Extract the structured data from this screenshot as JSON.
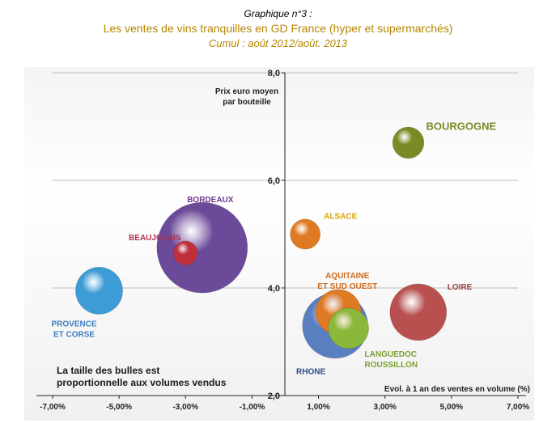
{
  "header": {
    "number": "Graphique n°3 :",
    "title": "Les ventes de vins tranquilles en GD France (hyper et supermarchés)",
    "subtitle": "Cumul : août 2012/août. 2013"
  },
  "chart_data": {
    "type": "scatter",
    "variant": "bubble",
    "ylabel": "Prix euro moyen\npar bouteille",
    "xlabel": "Evol. à 1 an des ventes en volume (%)",
    "xlim": [
      -7,
      7
    ],
    "ylim": [
      2,
      8
    ],
    "xticks": [
      "-7,00%",
      "-5,00%",
      "-3,00%",
      "-1,00%",
      "1,00%",
      "3,00%",
      "5,00%",
      "7,00%"
    ],
    "xtick_values": [
      -7,
      -5,
      -3,
      -1,
      1,
      3,
      5,
      7
    ],
    "yticks": [
      "2,0",
      "4,0",
      "6,0",
      "8,0"
    ],
    "ytick_values": [
      2,
      4,
      6,
      8
    ],
    "grid": "horizontal",
    "note": "La taille des bulles est\nproportionnelle aux volumes vendus",
    "series": [
      {
        "name": "BOURGOGNE",
        "x": 3.7,
        "y": 6.7,
        "size": 0.12,
        "color": "#7a8a25",
        "label": "BOURGOGNE"
      },
      {
        "name": "BORDEAUX",
        "x": -2.5,
        "y": 4.75,
        "size": 1.0,
        "color": "#6b4a9a",
        "label": "BORDEAUX"
      },
      {
        "name": "BEAUJOLAIS",
        "x": -3.0,
        "y": 4.65,
        "size": 0.07,
        "color": "#c0303a",
        "label": "BEAUJOLAIS"
      },
      {
        "name": "PROVENCE ET CORSE",
        "x": -5.6,
        "y": 3.95,
        "size": 0.27,
        "color": "#3d9bd6",
        "label": "PROVENCE\nET CORSE"
      },
      {
        "name": "ALSACE",
        "x": 0.6,
        "y": 5.0,
        "size": 0.11,
        "color": "#e07a22",
        "label": "ALSACE"
      },
      {
        "name": "RHONE",
        "x": 1.5,
        "y": 3.3,
        "size": 0.52,
        "color": "#5a7fc0",
        "label": "RHONE"
      },
      {
        "name": "LANGUEDOC ROUSSILLON",
        "x": 1.9,
        "y": 3.25,
        "size": 0.2,
        "color": "#8ab83a",
        "label": "LANGUEDOC\nROUSSILLON"
      },
      {
        "name": "AQUITAINE ET SUD OUEST",
        "x": 1.6,
        "y": 3.55,
        "size": 0.25,
        "color": "#e07a22",
        "label": "AQUITAINE\nET SUD OUEST"
      },
      {
        "name": "LOIRE",
        "x": 4.0,
        "y": 3.55,
        "size": 0.39,
        "color": "#b85050",
        "label": "LOIRE"
      }
    ]
  }
}
